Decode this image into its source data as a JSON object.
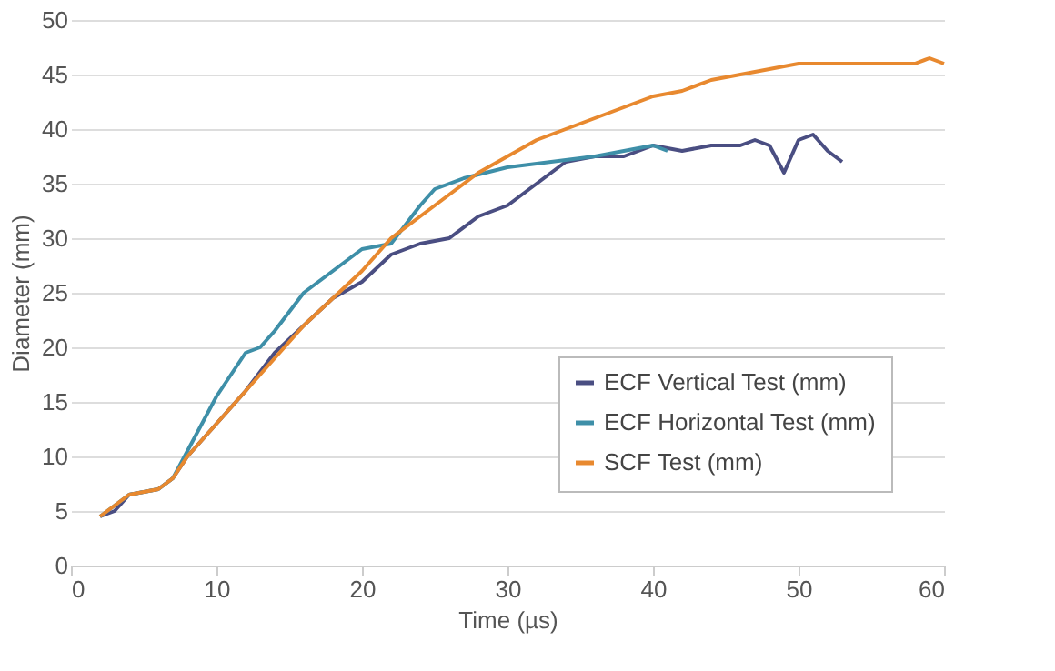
{
  "chart_data": {
    "type": "line",
    "xlabel": "Time (µs)",
    "ylabel": "Diameter (mm)",
    "xlim": [
      0,
      60
    ],
    "xticks": [
      0,
      10,
      20,
      30,
      40,
      50,
      60
    ],
    "ylim": [
      0,
      50
    ],
    "yticks": [
      0,
      5,
      10,
      15,
      20,
      25,
      30,
      35,
      40,
      45,
      50
    ],
    "grid": "y",
    "legend": "bottom right",
    "marker": "none",
    "line_style": "solid",
    "series": [
      {
        "name": "ECF Vertical Test (mm)",
        "color": "#4a4e82",
        "x": [
          2,
          3,
          4,
          6,
          7,
          8,
          10,
          12,
          14,
          16,
          18,
          20,
          22,
          24,
          26,
          28,
          30,
          32,
          34,
          36,
          38,
          40,
          42,
          44,
          46,
          47,
          48,
          49,
          50,
          51,
          52,
          53
        ],
        "values": [
          4.5,
          5,
          6.5,
          7,
          8,
          10,
          13,
          16,
          19.5,
          22,
          24.5,
          26,
          28.5,
          29.5,
          30,
          32,
          33,
          35,
          37,
          37.5,
          37.5,
          38.5,
          38,
          38.5,
          38.5,
          39,
          38.5,
          36,
          39,
          39.5,
          38,
          37
        ]
      },
      {
        "name": "ECF Horizontal Test (mm)",
        "color": "#3e8fa8",
        "x": [
          2,
          4,
          6,
          7,
          8,
          10,
          12,
          13,
          14,
          16,
          18,
          20,
          22,
          24,
          25,
          27,
          30,
          33,
          36,
          38,
          40,
          41
        ],
        "values": [
          4.5,
          6.5,
          7,
          8,
          10.5,
          15.5,
          19.5,
          20,
          21.5,
          25,
          27,
          29,
          29.5,
          33,
          34.5,
          35.5,
          36.5,
          37,
          37.5,
          38,
          38.5,
          38
        ]
      },
      {
        "name": "SCF Test (mm)",
        "color": "#e8892f",
        "x": [
          2,
          4,
          6,
          7,
          8,
          10,
          12,
          14,
          16,
          18,
          20,
          22,
          24,
          26,
          28,
          30,
          32,
          34,
          36,
          38,
          40,
          42,
          44,
          46,
          48,
          50,
          55,
          58,
          59,
          60
        ],
        "values": [
          4.5,
          6.5,
          7,
          8,
          10,
          13,
          16,
          19,
          22,
          24.5,
          27,
          30,
          32,
          34,
          36,
          37.5,
          39,
          40,
          41,
          42,
          43,
          43.5,
          44.5,
          45,
          45.5,
          46,
          46,
          46,
          46.5,
          46
        ]
      }
    ]
  }
}
